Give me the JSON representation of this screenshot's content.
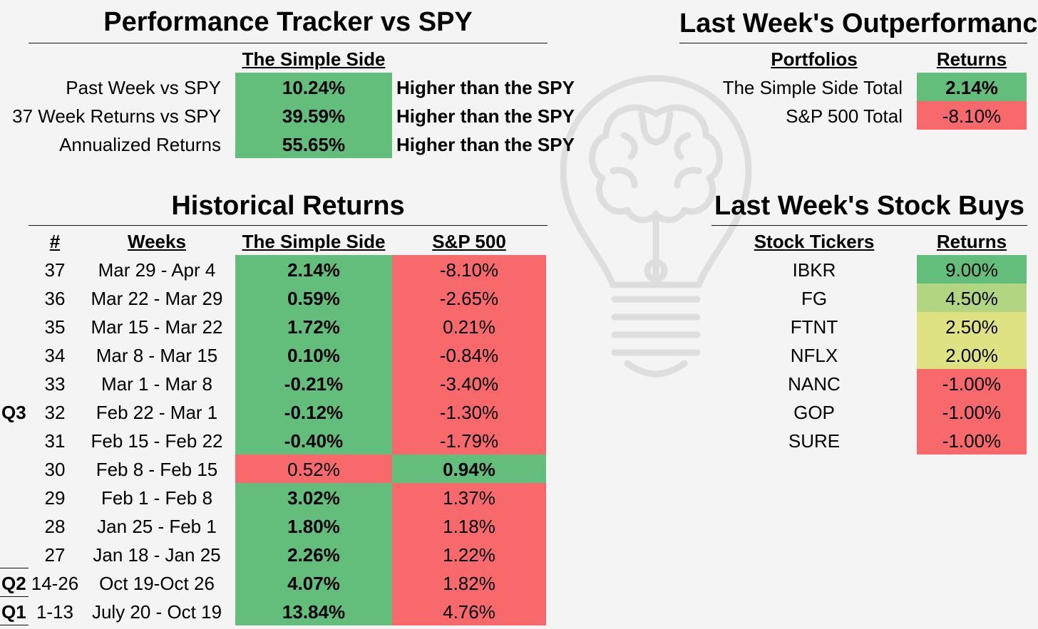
{
  "tracker": {
    "title": "Performance Tracker vs SPY",
    "column_header": "The Simple Side",
    "rows": [
      {
        "label": "Past Week vs SPY",
        "value": "10.24%",
        "note": "Higher than the SPY"
      },
      {
        "label": "37 Week Returns vs SPY",
        "value": "39.59%",
        "note": "Higher than the SPY"
      },
      {
        "label": "Annualized Returns",
        "value": "55.65%",
        "note": "Higher than the SPY"
      }
    ]
  },
  "outperformance": {
    "title": "Last Week's Outperformance",
    "headers": {
      "portfolios": "Portfolios",
      "returns": "Returns"
    },
    "rows": [
      {
        "name": "The Simple Side Total",
        "value": "2.14%",
        "status": "positive"
      },
      {
        "name": "S&P 500 Total",
        "value": "-8.10%",
        "status": "negative"
      }
    ]
  },
  "historical": {
    "title": "Historical Returns",
    "headers": {
      "num": "#",
      "weeks": "Weeks",
      "simple": "The Simple Side",
      "sp500": "S&P 500"
    },
    "quarter_labels": {
      "q3": "Q3",
      "q2": "Q2",
      "q1": "Q1"
    },
    "rows": [
      {
        "num": "37",
        "weeks": "Mar 29 - Apr 4",
        "simple": "2.14%",
        "sp500": "-8.10%",
        "winner": "simple"
      },
      {
        "num": "36",
        "weeks": "Mar 22 - Mar 29",
        "simple": "0.59%",
        "sp500": "-2.65%",
        "winner": "simple"
      },
      {
        "num": "35",
        "weeks": "Mar 15 - Mar 22",
        "simple": "1.72%",
        "sp500": "0.21%",
        "winner": "simple"
      },
      {
        "num": "34",
        "weeks": "Mar 8 - Mar 15",
        "simple": "0.10%",
        "sp500": "-0.84%",
        "winner": "simple"
      },
      {
        "num": "33",
        "weeks": "Mar 1 - Mar 8",
        "simple": "-0.21%",
        "sp500": "-3.40%",
        "winner": "simple"
      },
      {
        "num": "32",
        "weeks": "Feb 22 - Mar 1",
        "simple": "-0.12%",
        "sp500": "-1.30%",
        "winner": "simple"
      },
      {
        "num": "31",
        "weeks": "Feb 15 - Feb 22",
        "simple": "-0.40%",
        "sp500": "-1.79%",
        "winner": "simple"
      },
      {
        "num": "30",
        "weeks": "Feb 8 - Feb 15",
        "simple": "0.52%",
        "sp500": "0.94%",
        "winner": "sp500"
      },
      {
        "num": "29",
        "weeks": "Feb 1 - Feb 8",
        "simple": "3.02%",
        "sp500": "1.37%",
        "winner": "simple"
      },
      {
        "num": "28",
        "weeks": "Jan 25 - Feb 1",
        "simple": "1.80%",
        "sp500": "1.18%",
        "winner": "simple"
      },
      {
        "num": "27",
        "weeks": "Jan 18 - Jan 25",
        "simple": "2.26%",
        "sp500": "1.22%",
        "winner": "simple"
      },
      {
        "num": "14-26",
        "weeks": "Oct 19-Oct 26",
        "simple": "4.07%",
        "sp500": "1.82%",
        "winner": "simple"
      },
      {
        "num": "1-13",
        "weeks": "July 20 - Oct 19",
        "simple": "13.84%",
        "sp500": "4.76%",
        "winner": "simple"
      }
    ]
  },
  "stock_buys": {
    "title": "Last Week's Stock Buys",
    "headers": {
      "tickers": "Stock Tickers",
      "returns": "Returns"
    },
    "rows": [
      {
        "ticker": "IBKR",
        "value": "9.00%",
        "color": "#63be7b"
      },
      {
        "ticker": "FG",
        "value": "4.50%",
        "color": "#b1d580"
      },
      {
        "ticker": "FTNT",
        "value": "2.50%",
        "color": "#dee283"
      },
      {
        "ticker": "NFLX",
        "value": "2.00%",
        "color": "#dee283"
      },
      {
        "ticker": "NANC",
        "value": "-1.00%",
        "color": "#f8696b"
      },
      {
        "ticker": "GOP",
        "value": "-1.00%",
        "color": "#f8696b"
      },
      {
        "ticker": "SURE",
        "value": "-1.00%",
        "color": "#f8696b"
      }
    ]
  },
  "colors": {
    "positive": "#63be7b",
    "negative": "#f8696b"
  },
  "watermark_icon": "lightbulb-brain-icon"
}
